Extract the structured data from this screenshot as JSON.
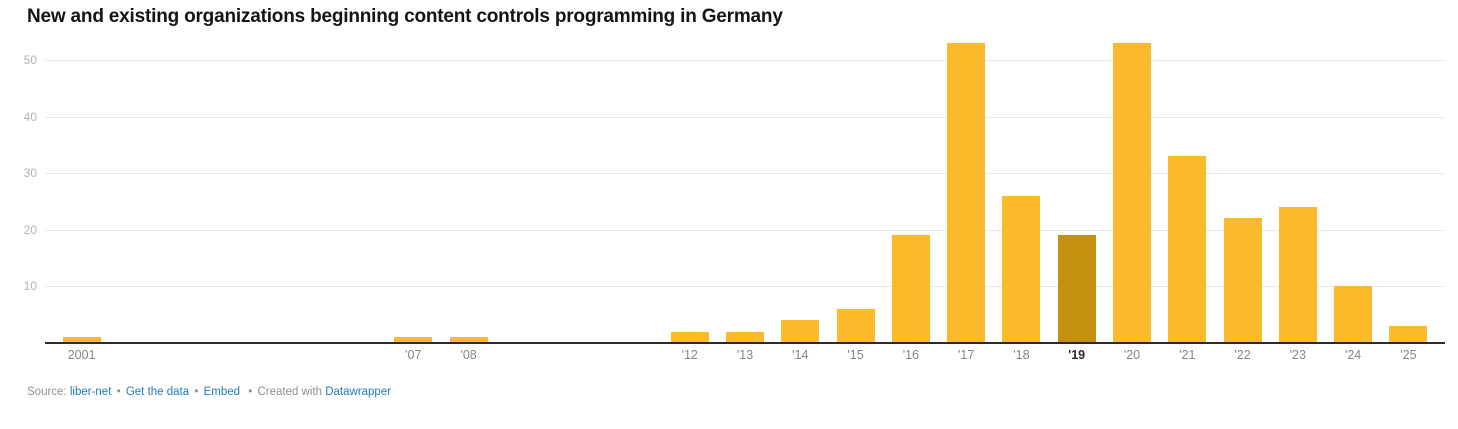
{
  "title": "New and existing organizations beginning content controls programming in Germany",
  "chart_data": {
    "type": "bar",
    "title": "New and existing organizations beginning content controls programming in Germany",
    "categories": [
      "2001",
      "2002",
      "2003",
      "2004",
      "2005",
      "2006",
      "2007",
      "2008",
      "2009",
      "2010",
      "2011",
      "2012",
      "2013",
      "2014",
      "2015",
      "2016",
      "2017",
      "2018",
      "2019",
      "2020",
      "2021",
      "2022",
      "2023",
      "2024",
      "2025"
    ],
    "tick_labels": [
      "2001",
      "",
      "",
      "",
      "",
      "",
      "'07",
      "'08",
      "",
      "",
      "",
      "'12",
      "'13",
      "'14",
      "'15",
      "'16",
      "'17",
      "'18",
      "'19",
      "'20",
      "'21",
      "'22",
      "'23",
      "'24",
      "'25"
    ],
    "values": [
      1,
      0,
      0,
      0,
      0,
      0,
      1,
      1,
      0,
      0,
      0,
      2,
      2,
      4,
      6,
      19,
      53,
      26,
      19,
      53,
      33,
      22,
      24,
      10,
      3
    ],
    "highlight_index": 18,
    "highlighted_category": "2019",
    "y_ticks": [
      10,
      20,
      30,
      40,
      50
    ],
    "ylim": [
      0,
      53
    ],
    "grid": true,
    "legend": "none",
    "xlabel": "",
    "ylabel": "",
    "colors": {
      "bar": "#FBB92C",
      "highlighted_bar": "#C3900F",
      "gridline": "#E8E8E8",
      "axis_line": "#2B2B2B",
      "y_tick_label": "#B3B3B3",
      "x_tick_label": "#858585",
      "highlight_tick_label": "#2B2B2B",
      "title": "#141414"
    }
  },
  "footer": {
    "source_label": "Source:",
    "source_link": "liber-net",
    "separator": "•",
    "get_data_link": "Get the data",
    "embed_link": "Embed",
    "created_with_label": "Created with",
    "created_with_link": "Datawrapper",
    "link_color": "#1F7BC0",
    "text_color": "#909090"
  }
}
